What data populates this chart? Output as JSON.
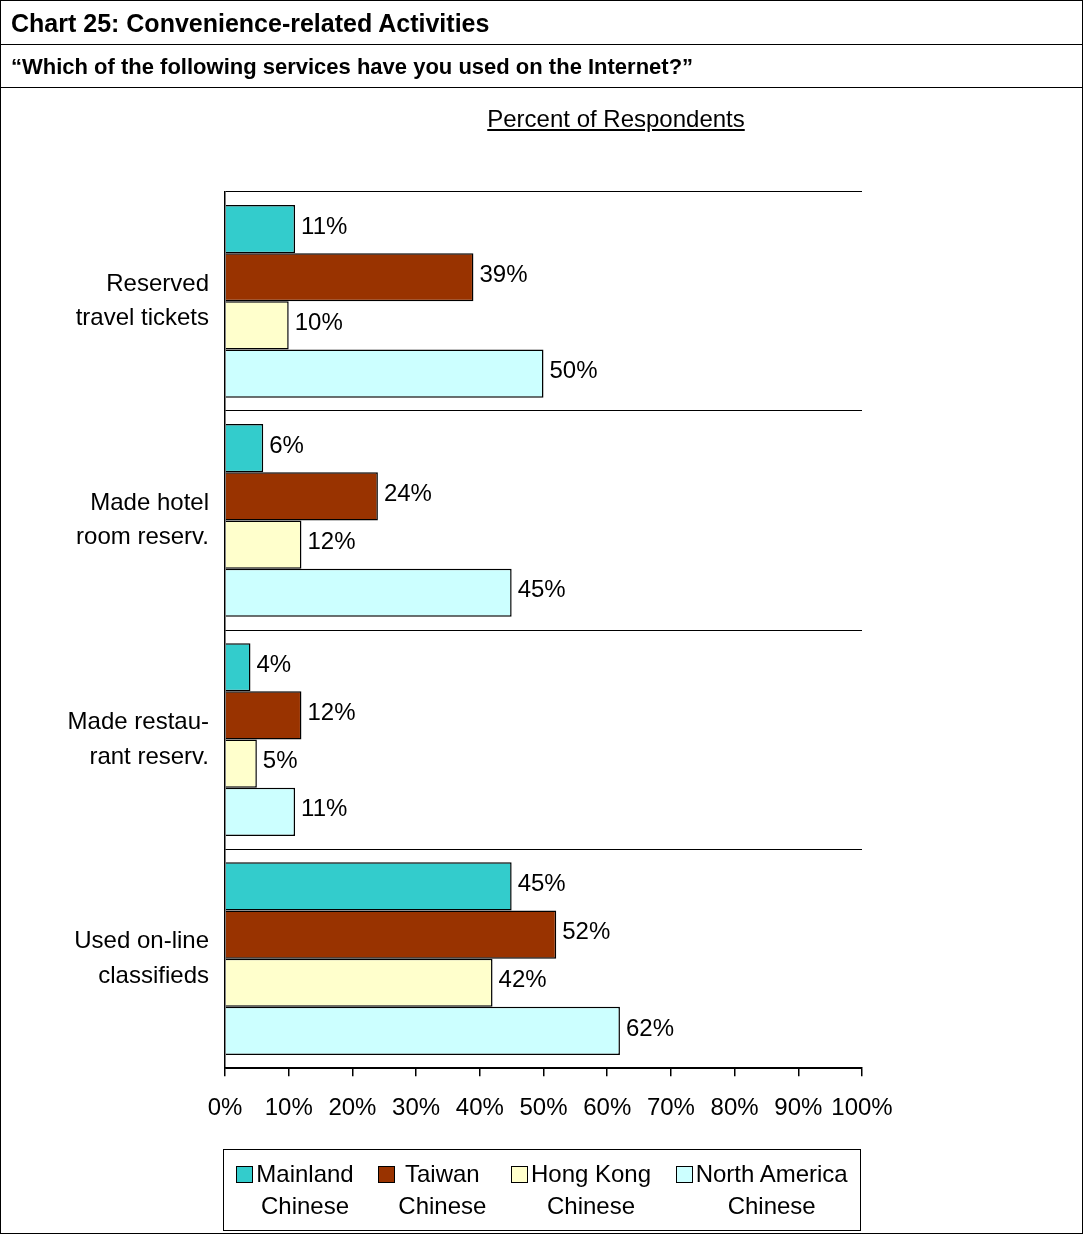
{
  "chart_data": {
    "type": "bar",
    "orientation": "horizontal",
    "title": "Chart 25: Convenience-related Activities",
    "subtitle": "“Which of the following services have you used on the Internet?”",
    "xlabel": "Percent of Respondents",
    "categories": [
      "Reserved travel tickets",
      "Made hotel room reserv.",
      "Made restau-rant reserv.",
      "Used on-line classifieds"
    ],
    "series": [
      {
        "name": "Mainland Chinese",
        "color": "#33cccc",
        "values": [
          11,
          6,
          4,
          45
        ],
        "value_labels": [
          "11%",
          "6%",
          "4%",
          "45%"
        ]
      },
      {
        "name": "Taiwan Chinese",
        "color": "#993300",
        "values": [
          39,
          24,
          12,
          52
        ],
        "value_labels": [
          "39%",
          "24%",
          "12%",
          "52%"
        ]
      },
      {
        "name": "Hong Kong Chinese",
        "color": "#ffffcc",
        "values": [
          10,
          12,
          5,
          42
        ],
        "value_labels": [
          "10%",
          "12%",
          "5%",
          "42%"
        ]
      },
      {
        "name": "North America Chinese",
        "color": "#ccffff",
        "values": [
          50,
          45,
          11,
          62
        ],
        "value_labels": [
          "50%",
          "45%",
          "11%",
          "62%"
        ]
      }
    ],
    "xlim": [
      0,
      100
    ],
    "xticks": [
      {
        "value": 0,
        "label": "0%"
      },
      {
        "value": 10,
        "label": "10%"
      },
      {
        "value": 20,
        "label": "20%"
      },
      {
        "value": 30,
        "label": "30%"
      },
      {
        "value": 40,
        "label": "40%"
      },
      {
        "value": 50,
        "label": "50%"
      },
      {
        "value": 60,
        "label": "60%"
      },
      {
        "value": 70,
        "label": "70%"
      },
      {
        "value": 80,
        "label": "80%"
      },
      {
        "value": 90,
        "label": "90%"
      },
      {
        "value": 100,
        "label": "100%"
      }
    ],
    "grid": "y",
    "legend": "bottom"
  }
}
